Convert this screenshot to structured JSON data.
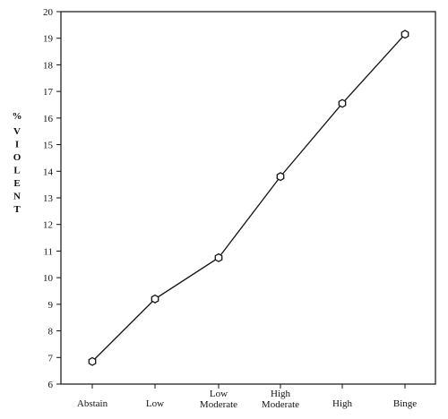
{
  "chart_data": {
    "type": "line",
    "title": "",
    "xlabel": "",
    "ylabel": "% VIOLENT",
    "categories": [
      "Abstain",
      "Low",
      "Low Moderate",
      "High Moderate",
      "High",
      "Binge"
    ],
    "category_lines": [
      [
        "Abstain"
      ],
      [
        "Low"
      ],
      [
        "Low",
        "Moderate"
      ],
      [
        "High",
        "Moderate"
      ],
      [
        "High"
      ],
      [
        "Binge"
      ]
    ],
    "series": [
      {
        "values": [
          6.85,
          9.2,
          10.75,
          13.8,
          16.55,
          19.15
        ]
      }
    ],
    "ylim": [
      6,
      20
    ],
    "yticks": [
      6,
      7,
      8,
      9,
      10,
      11,
      12,
      13,
      14,
      15,
      16,
      17,
      18,
      19,
      20
    ],
    "grid": false,
    "legend": "none",
    "colors": {
      "line": "#111111",
      "marker_fill": "#ffffff",
      "axis": "#111111"
    }
  }
}
